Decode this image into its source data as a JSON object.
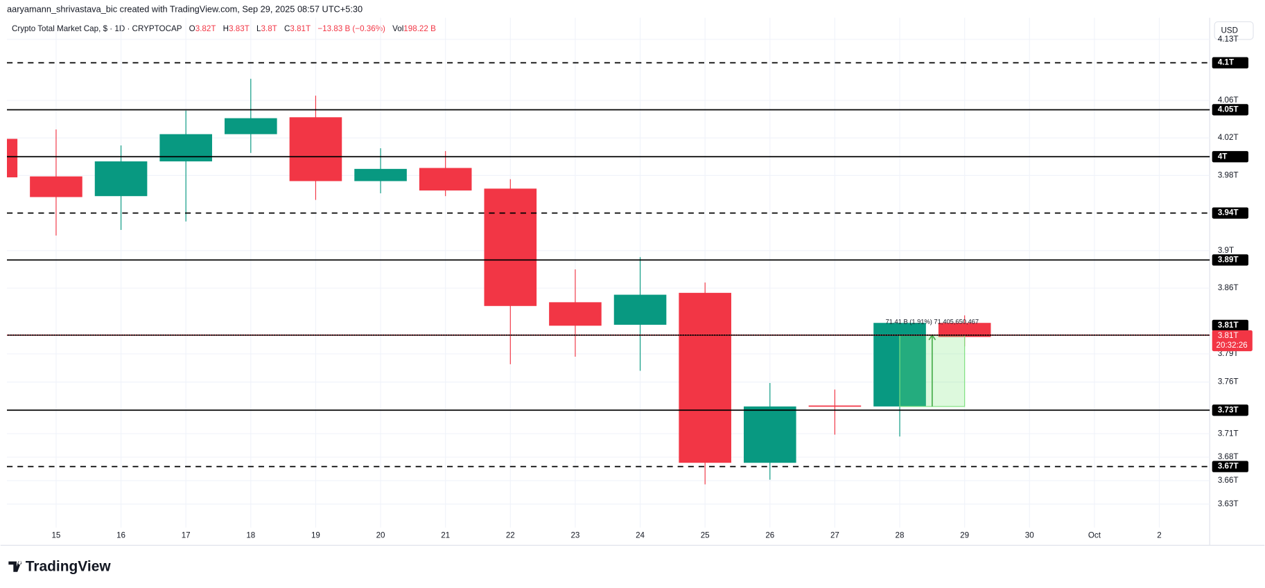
{
  "header": "aaryamann_shrivastava_bic created with TradingView.com, Sep 29, 2025 08:57 UTC+5:30",
  "chart_data": {
    "type": "candlestick",
    "title": "Crypto Total Market Cap, $ · 1D · CRYPTOCAP",
    "legend_ohlc": [
      {
        "key": "O",
        "value": "3.82T"
      },
      {
        "key": "H",
        "value": "3.83T"
      },
      {
        "key": "L",
        "value": "3.8T"
      },
      {
        "key": "C",
        "value": "3.81T"
      }
    ],
    "change": "−13.83 B (−0.36%)",
    "volume": {
      "key": "Vol",
      "value": "198.22 B"
    },
    "currency": "USD",
    "categories": [
      null,
      "15",
      "16",
      "17",
      "18",
      "19",
      "20",
      "21",
      "22",
      "23",
      "24",
      "25",
      "26",
      "27",
      "28",
      "29",
      "30",
      "Oct",
      "2"
    ],
    "open": [
      4.019,
      3.979,
      3.958,
      3.995,
      4.024,
      4.042,
      3.974,
      3.988,
      3.966,
      3.845,
      3.821,
      3.855,
      3.674,
      3.735,
      3.734,
      3.823,
      null,
      null,
      null
    ],
    "high": [
      4.019,
      4.029,
      4.012,
      4.049,
      4.083,
      4.065,
      4.009,
      4.006,
      3.976,
      3.88,
      3.893,
      3.866,
      3.759,
      3.752,
      3.823,
      3.831,
      null,
      null,
      null
    ],
    "low": [
      3.978,
      3.916,
      3.922,
      3.931,
      4.004,
      3.954,
      3.961,
      3.958,
      3.779,
      3.787,
      3.772,
      3.651,
      3.656,
      3.704,
      3.702,
      3.798,
      null,
      null,
      null
    ],
    "close": [
      3.978,
      3.957,
      3.995,
      4.024,
      4.041,
      3.974,
      3.987,
      3.964,
      3.841,
      3.82,
      3.853,
      3.674,
      3.734,
      3.734,
      3.823,
      3.808,
      null,
      null,
      null
    ],
    "up_color": "#089981",
    "down_color": "#f23645",
    "ylim": [
      3.605,
      4.148
    ],
    "yticks": [
      {
        "value": 4.125,
        "label": "4.13T"
      },
      {
        "value": 4.06,
        "label": "4.06T"
      },
      {
        "value": 4.02,
        "label": "4.02T"
      },
      {
        "value": 3.98,
        "label": "3.98T"
      },
      {
        "value": 3.9,
        "label": "3.9T"
      },
      {
        "value": 3.86,
        "label": "3.86T"
      },
      {
        "value": 3.79,
        "label": "3.79T"
      },
      {
        "value": 3.76,
        "label": "3.76T"
      },
      {
        "value": 3.705,
        "label": "3.71T"
      },
      {
        "value": 3.68,
        "label": "3.68T"
      },
      {
        "value": 3.655,
        "label": "3.66T"
      },
      {
        "value": 3.63,
        "label": "3.63T"
      }
    ],
    "grid": true,
    "levels": [
      {
        "value": 4.1,
        "label": "4.1T",
        "style": "dashed"
      },
      {
        "value": 4.05,
        "label": "4.05T",
        "style": "solid"
      },
      {
        "value": 4,
        "label": "4T",
        "style": "solid"
      },
      {
        "value": 3.94,
        "label": "3.94T",
        "style": "dashed"
      },
      {
        "value": 3.89,
        "label": "3.89T",
        "style": "solid"
      },
      {
        "value": 3.81,
        "label": "3.81T",
        "style": "solid"
      },
      {
        "value": 3.73,
        "label": "3.73T",
        "style": "solid"
      },
      {
        "value": 3.67,
        "label": "3.67T",
        "style": "dashed"
      }
    ],
    "current_price": {
      "value": 3.81,
      "label": "3.81T",
      "countdown": "20:32:26"
    },
    "measure_label": "71.41 B (1.91%) 71,405,650,467"
  },
  "brand": "TradingView"
}
